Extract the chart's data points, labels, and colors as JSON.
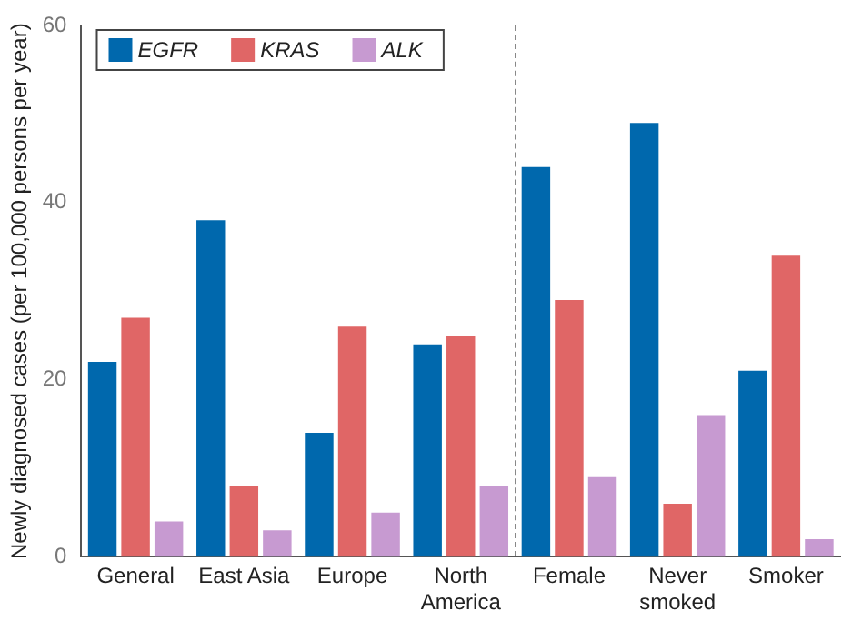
{
  "chart_data": {
    "type": "bar",
    "categories": [
      "General",
      "East Asia",
      "Europe",
      "North\nAmerica",
      "Female",
      "Never\nsmoked",
      "Smoker"
    ],
    "series": [
      {
        "name": "EGFR",
        "color": "#0068ad",
        "values": [
          22,
          38,
          14,
          24,
          44,
          49,
          21
        ]
      },
      {
        "name": "KRAS",
        "color": "#e06666",
        "values": [
          27,
          8,
          26,
          25,
          29,
          6,
          34
        ]
      },
      {
        "name": "ALK",
        "color": "#c79ad1",
        "values": [
          4,
          3,
          5,
          8,
          9,
          16,
          2
        ]
      }
    ],
    "ylabel": "Newly diagnosed cases (per 100,000 persons per year)",
    "ylim": [
      0,
      60
    ],
    "yticks": [
      0,
      20,
      40,
      60
    ],
    "grid": false,
    "legend": "top left"
  }
}
